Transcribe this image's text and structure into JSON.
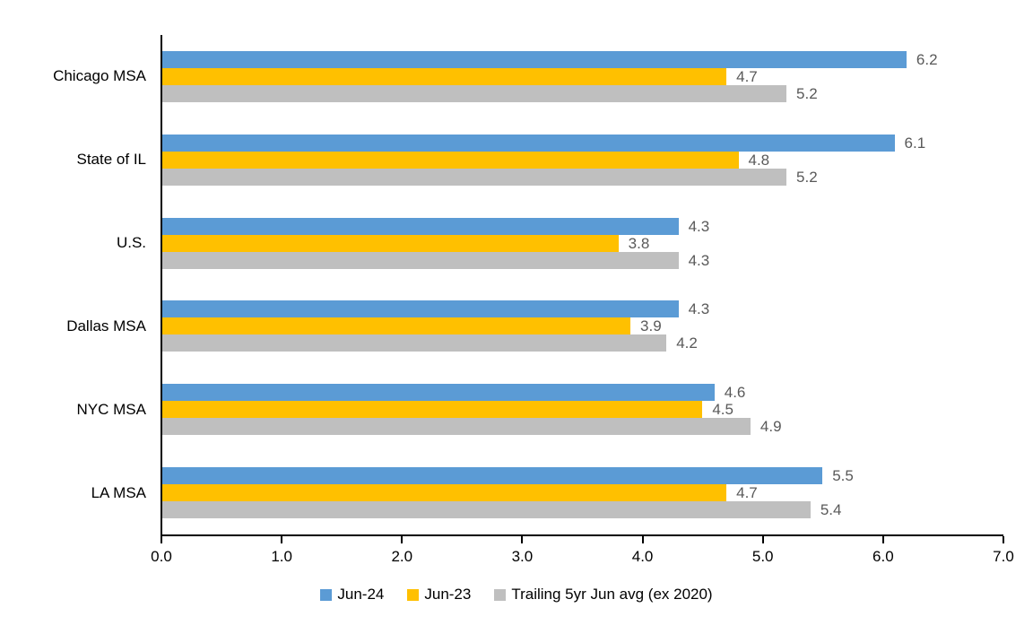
{
  "chart_data": {
    "type": "bar",
    "orientation": "horizontal",
    "title": "",
    "categories": [
      "Chicago MSA",
      "State of IL",
      "U.S.",
      "Dallas MSA",
      "NYC MSA",
      "LA MSA"
    ],
    "series": [
      {
        "name": "Jun-24",
        "color": "#5B9BD5",
        "values": [
          6.2,
          6.1,
          4.3,
          4.3,
          4.6,
          5.5
        ]
      },
      {
        "name": "Jun-23",
        "color": "#FFC000",
        "values": [
          4.7,
          4.8,
          3.8,
          3.9,
          4.5,
          4.7
        ]
      },
      {
        "name": "Trailing 5yr Jun avg (ex 2020)",
        "color": "#BFBFBF",
        "values": [
          5.2,
          5.2,
          4.3,
          4.2,
          4.9,
          5.4
        ]
      }
    ],
    "xlim": [
      0,
      7
    ],
    "xtick_labels": [
      "0.0",
      "1.0",
      "2.0",
      "3.0",
      "4.0",
      "5.0",
      "6.0",
      "7.0"
    ],
    "data_labels": true,
    "legend_position": "bottom",
    "grid": false
  },
  "colors": {
    "axis": "#000000",
    "data_label": "#595959",
    "background": "#FFFFFF"
  }
}
